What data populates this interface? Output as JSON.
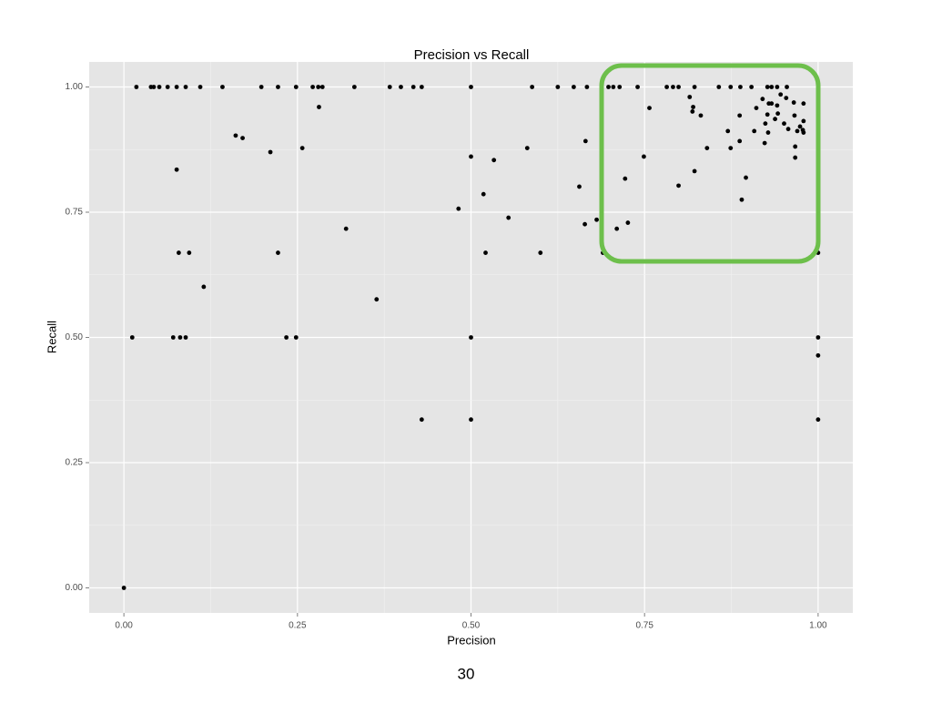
{
  "chart_data": {
    "type": "scatter",
    "title": "Precision vs Recall",
    "x_label": "Precision",
    "y_label": "Recall",
    "series": [
      {
        "name": null,
        "color": "#000000",
        "x": [
          0.018,
          0.039,
          0.043,
          0.051,
          0.063,
          0.076,
          0.089,
          0.11,
          0.142,
          0.198,
          0.222,
          0.248,
          0.272,
          0.28,
          0.286,
          0.332,
          0.383,
          0.399,
          0.417,
          0.429,
          0.5,
          0.588,
          0.625,
          0.648,
          0.667,
          0.698,
          0.705,
          0.714,
          0.74,
          0.782,
          0.791,
          0.799,
          0.822,
          0.857,
          0.874,
          0.888,
          0.904,
          0.927,
          0.933,
          0.941,
          0.955,
          0,
          0.012,
          0.076,
          0.079,
          0.094,
          0.071,
          0.081,
          0.089,
          0.115,
          0.161,
          0.171,
          0.211,
          0.222,
          0.234,
          0.248,
          0.257,
          0.281,
          0.32,
          0.364,
          0.429,
          0.482,
          0.5,
          0.5,
          0.5,
          0.518,
          0.521,
          0.533,
          0.554,
          0.581,
          0.6,
          0.656,
          0.665,
          0.664,
          0.681,
          0.69,
          0.71,
          0.722,
          0.726,
          0.749,
          0.757,
          0.799,
          0.815,
          0.82,
          0.819,
          0.822,
          0.831,
          0.84,
          0.87,
          0.874,
          0.887,
          0.887,
          0.89,
          0.896,
          0.908,
          0.911,
          0.92,
          0.923,
          0.924,
          0.927,
          0.928,
          0.929,
          0.933,
          0.938,
          0.941,
          0.942,
          0.946,
          0.951,
          0.954,
          0.957,
          0.965,
          0.966,
          0.967,
          0.967,
          0.97,
          0.974,
          0.978,
          0.979,
          0.979,
          0.979,
          1,
          1,
          1,
          1
        ],
        "values": [
          1,
          1,
          1,
          1,
          1,
          1,
          1,
          1,
          1,
          1,
          1,
          1,
          1,
          1,
          1,
          1,
          1,
          1,
          1,
          1,
          1,
          1,
          1,
          1,
          1,
          1,
          1,
          1,
          1,
          1,
          1,
          1,
          1,
          1,
          1,
          1,
          1,
          1,
          1,
          1,
          1,
          0,
          0.5,
          0.835,
          0.669,
          0.669,
          0.5,
          0.5,
          0.5,
          0.601,
          0.903,
          0.898,
          0.87,
          0.669,
          0.5,
          0.5,
          0.878,
          0.96,
          0.717,
          0.576,
          0.336,
          0.757,
          0.861,
          0.5,
          0.336,
          0.786,
          0.669,
          0.854,
          0.739,
          0.878,
          0.669,
          0.801,
          0.892,
          0.726,
          0.735,
          0.669,
          0.717,
          0.817,
          0.729,
          0.861,
          0.958,
          0.803,
          0.98,
          0.96,
          0.951,
          0.832,
          0.943,
          0.878,
          0.912,
          0.878,
          0.943,
          0.892,
          0.775,
          0.819,
          0.912,
          0.958,
          0.976,
          0.888,
          0.927,
          0.945,
          0.909,
          0.967,
          0.967,
          0.936,
          0.963,
          0.947,
          0.985,
          0.927,
          0.978,
          0.916,
          0.969,
          0.943,
          0.881,
          0.859,
          0.912,
          0.921,
          0.914,
          0.909,
          0.967,
          0.932,
          0.669,
          0.5,
          0.464,
          0.336
        ]
      }
    ],
    "xlim": [
      -0.05,
      1.05
    ],
    "ylim": [
      -0.05,
      1.05
    ],
    "xticks": [
      {
        "value": 0,
        "label": "0.00"
      },
      0.25,
      {
        "value": 0.5,
        "label": "0.50"
      },
      0.75,
      {
        "value": 1,
        "label": "1.00"
      }
    ],
    "yticks": [
      {
        "value": 0,
        "label": "0.00"
      },
      0.25,
      {
        "value": 0.5,
        "label": "0.50"
      },
      0.75,
      {
        "value": 1,
        "label": "1.00"
      }
    ],
    "grid": true
  },
  "page_number": "30"
}
